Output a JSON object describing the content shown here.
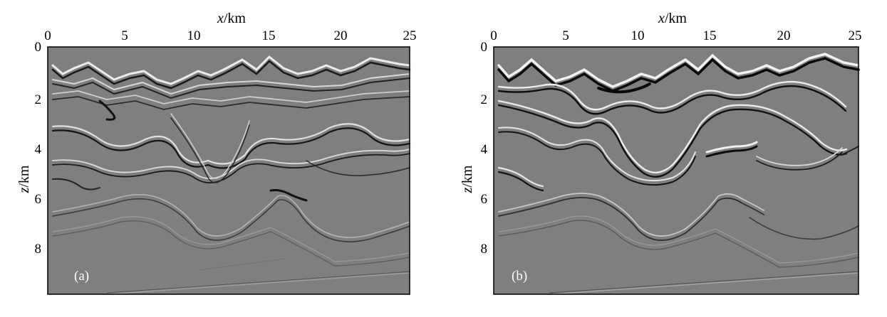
{
  "panels": [
    {
      "id": "a",
      "label": "(a)",
      "x_label": {
        "italic": "x",
        "unit": "/km"
      },
      "z_label": {
        "italic": "z",
        "unit": "/km"
      },
      "x_ticks": [
        "0",
        "5",
        "10",
        "15",
        "20",
        "25"
      ],
      "z_ticks": [
        "0",
        "2",
        "4",
        "6",
        "8"
      ]
    },
    {
      "id": "b",
      "label": "(b)",
      "x_label": {
        "italic": "x",
        "unit": "/km"
      },
      "z_label": {
        "italic": "z",
        "unit": "/km"
      },
      "x_ticks": [
        "0",
        "5",
        "10",
        "15",
        "20",
        "25"
      ],
      "z_ticks": [
        "0",
        "2",
        "4",
        "6",
        "8"
      ]
    }
  ],
  "axes": {
    "x_range": [
      0,
      25
    ],
    "z_range": [
      0,
      10
    ],
    "z_reversed": true
  },
  "colors": {
    "background": "#7f7f7f",
    "frame": "#000000",
    "reflector_dark": "#1a1a1a",
    "reflector_light": "#e8e8e8"
  }
}
